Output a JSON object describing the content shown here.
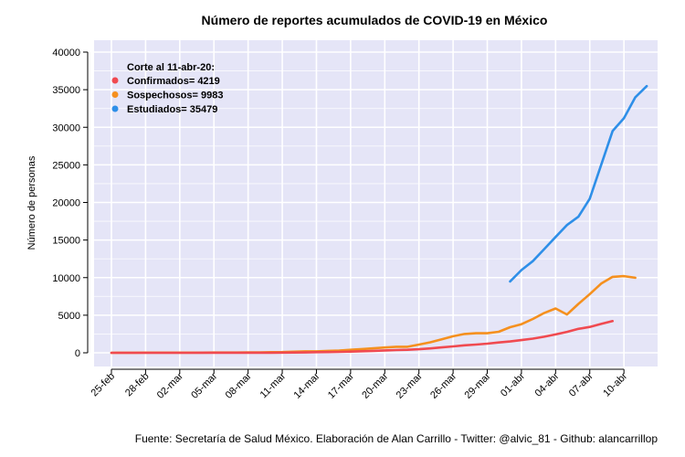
{
  "chart_data": {
    "type": "line",
    "title": "Número de reportes acumulados de COVID-19 en México",
    "ylabel": "Número de personas",
    "xlabel": "",
    "caption": "Fuente: Secretaría de Salud México. Elaboración de Alan Carrillo - Twitter: @alvic_81 - Github: alancarrillop",
    "ylim": [
      0,
      40000
    ],
    "yticks": [
      0,
      5000,
      10000,
      15000,
      20000,
      25000,
      30000,
      35000,
      40000
    ],
    "grid": true,
    "legend_position": "top-left",
    "legend_title": "Corte al 11-abr-20:",
    "xtick_labels": [
      "25-feb",
      "28-feb",
      "02-mar",
      "05-mar",
      "08-mar",
      "11-mar",
      "14-mar",
      "17-mar",
      "20-mar",
      "23-mar",
      "26-mar",
      "29-mar",
      "01-abr",
      "04-abr",
      "07-abr",
      "10-abr"
    ],
    "colors": {
      "panel_background": "#E5E5F7",
      "grid": "#FFFFFF",
      "Confirmados": "#F04A50",
      "Sospechosos": "#F5901E",
      "Estudiados": "#2E8FE8"
    },
    "series": [
      {
        "name": "Confirmados",
        "legend_label": "Confirmados= 4219",
        "start_day": 0,
        "values": [
          2,
          4,
          5,
          5,
          5,
          5,
          5,
          6,
          7,
          7,
          7,
          7,
          8,
          12,
          16,
          26,
          41,
          53,
          82,
          93,
          118,
          164,
          203,
          251,
          316,
          367,
          405,
          475,
          585,
          717,
          848,
          993,
          1094,
          1215,
          1378,
          1510,
          1688,
          1890,
          2143,
          2439,
          2785,
          3181,
          3441,
          3844,
          4219
        ]
      },
      {
        "name": "Sospechosos",
        "legend_label": "Sospechosos= 9983",
        "start_day": 0,
        "values": [
          5,
          8,
          15,
          20,
          25,
          20,
          20,
          25,
          30,
          35,
          35,
          40,
          45,
          60,
          80,
          100,
          150,
          200,
          200,
          250,
          300,
          400,
          500,
          600,
          700,
          800,
          800,
          1100,
          1400,
          1800,
          2200,
          2500,
          2600,
          2600,
          2800,
          3400,
          3800,
          4500,
          5300,
          5900,
          5100,
          6500,
          7800,
          9200,
          10100,
          10200,
          9983
        ]
      },
      {
        "name": "Estudiados",
        "legend_label": "Estudiados= 35479",
        "start_day": 35,
        "values": [
          9500,
          11000,
          12200,
          13800,
          15400,
          17000,
          18100,
          20500,
          25000,
          29500,
          31200,
          34000,
          35479
        ]
      }
    ]
  }
}
